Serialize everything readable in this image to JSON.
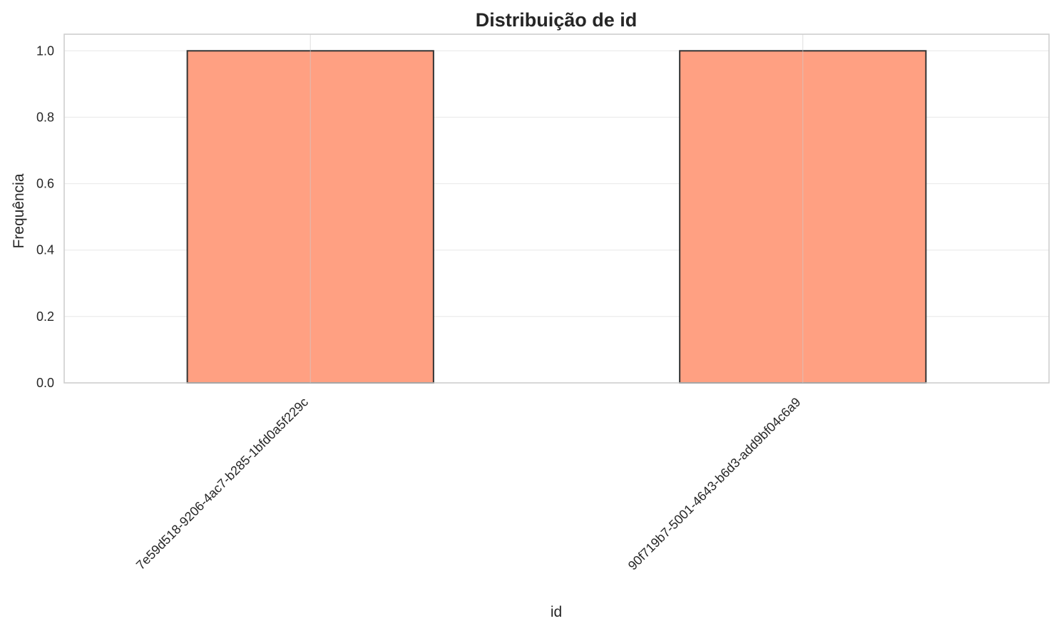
{
  "chart_data": {
    "type": "bar",
    "title": "Distribuição de id",
    "xlabel": "id",
    "ylabel": "Frequência",
    "categories": [
      "7e59d518-9206-4ac7-b285-1bfd0a5f229c",
      "90f719b7-5001-4643-b6d3-add9bf04c6a9"
    ],
    "values": [
      1,
      1
    ],
    "ylim": [
      0,
      1.05
    ],
    "yticks": [
      "0.0",
      "0.2",
      "0.4",
      "0.6",
      "0.8",
      "1.0"
    ],
    "grid": true,
    "bar_color": "#ffa082",
    "edge_color": "#333333"
  }
}
